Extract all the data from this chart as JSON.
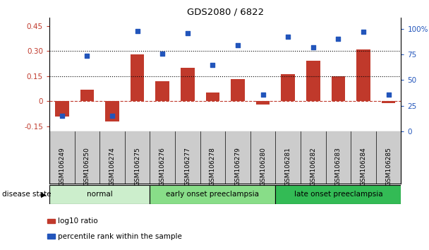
{
  "title": "GDS2080 / 6822",
  "samples": [
    "GSM106249",
    "GSM106250",
    "GSM106274",
    "GSM106275",
    "GSM106276",
    "GSM106277",
    "GSM106278",
    "GSM106279",
    "GSM106280",
    "GSM106281",
    "GSM106282",
    "GSM106283",
    "GSM106284",
    "GSM106285"
  ],
  "log10_ratio": [
    -0.09,
    0.07,
    -0.12,
    0.28,
    0.12,
    0.2,
    0.05,
    0.13,
    -0.02,
    0.16,
    0.24,
    0.15,
    0.31,
    -0.01
  ],
  "percentile_rank": [
    15,
    74,
    15,
    98,
    76,
    96,
    65,
    84,
    36,
    92,
    82,
    90,
    97,
    36
  ],
  "bar_color": "#c0392b",
  "dot_color": "#2255bb",
  "ylim_left": [
    -0.18,
    0.5
  ],
  "ylim_right": [
    0,
    111.1
  ],
  "yticks_left": [
    -0.15,
    0.0,
    0.15,
    0.3,
    0.45
  ],
  "ytick_labels_left": [
    "-0.15",
    "0",
    "0.15",
    "0.30",
    "0.45"
  ],
  "yticks_right": [
    0,
    25,
    50,
    75,
    100
  ],
  "ytick_labels_right": [
    "0",
    "25",
    "50",
    "75",
    "100%"
  ],
  "hline_y": [
    0.15,
    0.3
  ],
  "zero_line_y": 0.0,
  "groups": [
    {
      "label": "normal",
      "start": 0,
      "end": 4,
      "color": "#cceecc"
    },
    {
      "label": "early onset preeclampsia",
      "start": 4,
      "end": 9,
      "color": "#88dd88"
    },
    {
      "label": "late onset preeclampsia",
      "start": 9,
      "end": 14,
      "color": "#33bb55"
    }
  ],
  "disease_state_label": "disease state",
  "legend_items": [
    {
      "label": "log10 ratio",
      "color": "#c0392b"
    },
    {
      "label": "percentile rank within the sample",
      "color": "#2255bb"
    }
  ],
  "sample_bg_color": "#cccccc",
  "bar_width": 0.55
}
